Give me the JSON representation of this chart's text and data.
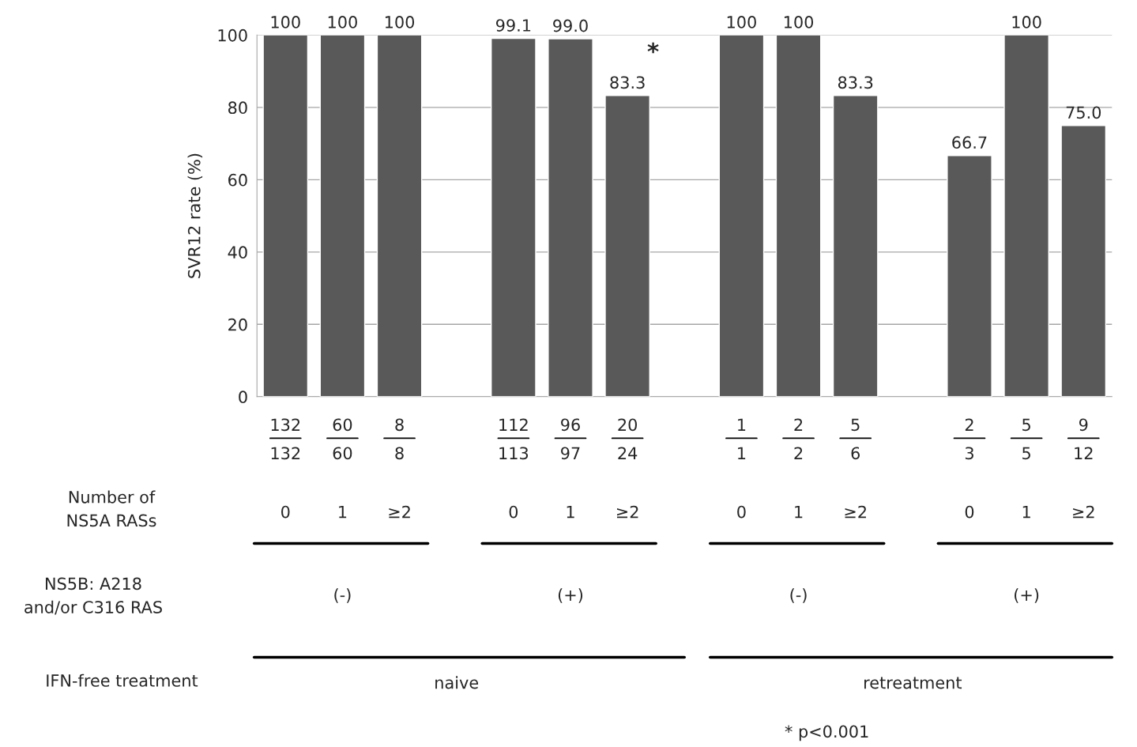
{
  "chart_data": {
    "type": "bar",
    "ylabel": "SVR12 rate (%)",
    "categories": [
      "0",
      "1",
      "≥2",
      null,
      "0",
      "1",
      "≥2",
      null,
      "0",
      "1",
      "≥2",
      null,
      "0",
      "1",
      "≥2"
    ],
    "values": [
      100,
      100,
      100,
      null,
      99.1,
      99.0,
      83.3,
      null,
      100,
      100,
      83.3,
      null,
      66.7,
      100,
      75.0
    ],
    "value_labels": [
      "100",
      "100",
      "100",
      null,
      "99.1",
      "99.0",
      "83.3",
      null,
      "100",
      "100",
      "83.3",
      null,
      "66.7",
      "100",
      "75.0"
    ],
    "color": "#595959",
    "ylim": [
      0,
      100
    ],
    "yticks": [
      0,
      20,
      40,
      60,
      80,
      100
    ],
    "grid": "y",
    "annotations": [
      "132\n132",
      "60\n60",
      "8\n8",
      "112\n113",
      "96\n97",
      "20\n24",
      "1\n1",
      "2\n2",
      "5\n6",
      "2\n3",
      "5\n5",
      "9\n12",
      "Number of\nNS5A RASs",
      "(-)",
      "(+)",
      "(-)",
      "(+)",
      "NS5B: A218\nand/or C316 RAS",
      "naive",
      "retreatment",
      "IFN-free treatment",
      "*",
      "* p<0.001"
    ]
  }
}
